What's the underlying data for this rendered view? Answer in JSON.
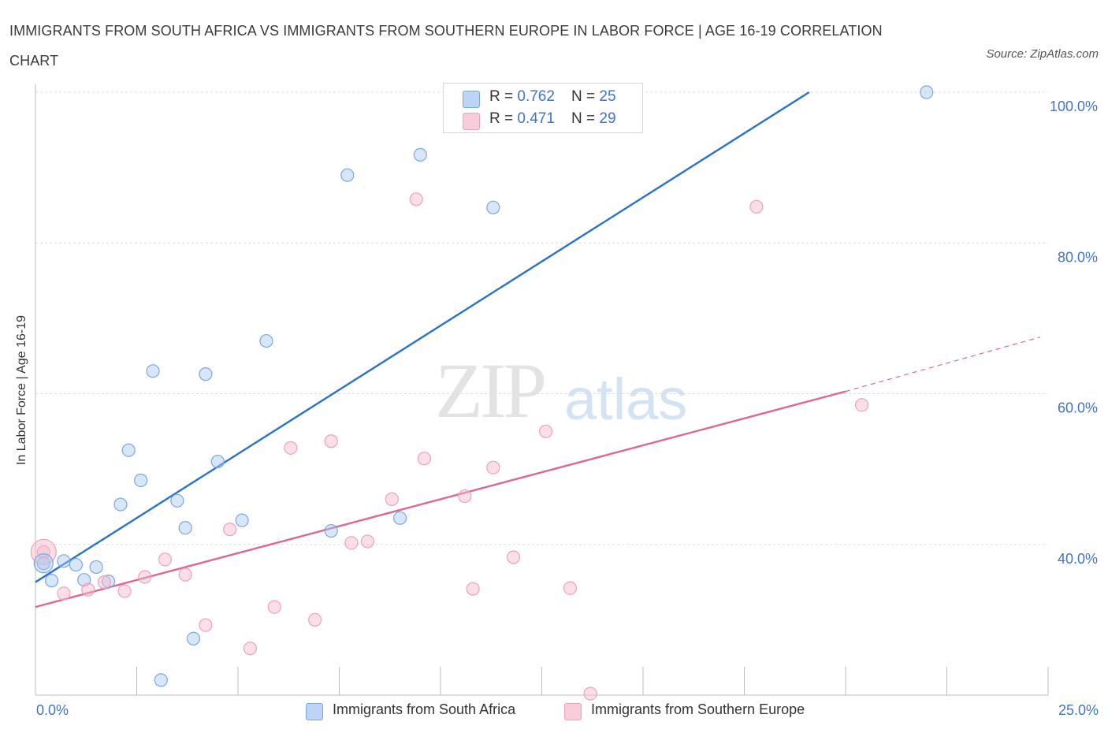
{
  "header": {
    "title": "IMMIGRANTS FROM SOUTH AFRICA VS IMMIGRANTS FROM SOUTHERN EUROPE IN LABOR FORCE | AGE 16-19 CORRELATION CHART",
    "source": "Source: ZipAtlas.com"
  },
  "watermark": {
    "zip": "ZIP",
    "atlas": "atlas"
  },
  "legend": {
    "rows": [
      {
        "r_label": "R = ",
        "r_value": "0.762",
        "n_label": "N = ",
        "n_value": "25",
        "color": "#a9c8f2"
      },
      {
        "r_label": "R = ",
        "r_value": "0.471",
        "n_label": "N = ",
        "n_value": "29",
        "color": "#f5b8cb"
      }
    ]
  },
  "bottom_legend": {
    "items": [
      {
        "label": "Immigrants from South Africa",
        "color": "#a9c8f2"
      },
      {
        "label": "Immigrants from Southern Europe",
        "color": "#f5b8cb"
      }
    ]
  },
  "chart_data": {
    "type": "scatter",
    "ylabel": "In Labor Force | Age 16-19",
    "xlim": [
      0,
      25
    ],
    "ylim": [
      20,
      100
    ],
    "x_tick_labels": [
      "0.0%",
      "25.0%"
    ],
    "y_ticks": [
      40,
      60,
      80,
      100
    ],
    "y_tick_labels": [
      "40.0%",
      "60.0%",
      "80.0%",
      "100.0%"
    ],
    "grid": "horizontal dashed",
    "series": [
      {
        "name": "Immigrants from South Africa",
        "color": "#7aa7e0",
        "line_color": "#2a72c8",
        "points": [
          [
            0.2,
            37.5
          ],
          [
            0.4,
            35.2
          ],
          [
            0.7,
            37.8
          ],
          [
            1.0,
            37.3
          ],
          [
            1.2,
            35.3
          ],
          [
            1.5,
            37.0
          ],
          [
            1.8,
            35.1
          ],
          [
            2.1,
            45.3
          ],
          [
            2.3,
            52.5
          ],
          [
            2.6,
            48.5
          ],
          [
            2.9,
            63.0
          ],
          [
            3.1,
            22.0
          ],
          [
            3.5,
            45.8
          ],
          [
            3.7,
            42.2
          ],
          [
            3.9,
            27.5
          ],
          [
            4.2,
            62.6
          ],
          [
            4.5,
            51.0
          ],
          [
            5.1,
            43.2
          ],
          [
            5.7,
            67.0
          ],
          [
            7.3,
            41.8
          ],
          [
            7.7,
            89.0
          ],
          [
            9.0,
            43.5
          ],
          [
            9.5,
            91.7
          ],
          [
            11.3,
            84.7
          ],
          [
            22.0,
            100.0
          ]
        ],
        "trend": {
          "x": [
            0,
            19.1
          ],
          "y": [
            35.0,
            100.0
          ]
        }
      },
      {
        "name": "Immigrants from Southern Europe",
        "color": "#f1a0b8",
        "line_color": "#e0668e",
        "points": [
          [
            0.2,
            39.0
          ],
          [
            0.7,
            33.5
          ],
          [
            1.3,
            34.0
          ],
          [
            1.7,
            35.0
          ],
          [
            2.2,
            33.8
          ],
          [
            2.7,
            35.7
          ],
          [
            3.2,
            38.0
          ],
          [
            3.7,
            36.0
          ],
          [
            4.2,
            29.3
          ],
          [
            4.8,
            42.0
          ],
          [
            5.3,
            26.2
          ],
          [
            5.9,
            31.7
          ],
          [
            6.3,
            52.8
          ],
          [
            6.9,
            30.0
          ],
          [
            7.3,
            53.7
          ],
          [
            7.8,
            40.2
          ],
          [
            8.2,
            40.4
          ],
          [
            8.8,
            46.0
          ],
          [
            9.4,
            85.8
          ],
          [
            9.6,
            51.4
          ],
          [
            10.6,
            46.4
          ],
          [
            10.8,
            34.1
          ],
          [
            11.3,
            50.2
          ],
          [
            11.8,
            38.3
          ],
          [
            12.6,
            55.0
          ],
          [
            13.2,
            34.2
          ],
          [
            13.7,
            20.2
          ],
          [
            17.8,
            84.8
          ],
          [
            20.4,
            58.5
          ]
        ],
        "trend": {
          "x": [
            0,
            20.0
          ],
          "y": [
            31.7,
            60.3
          ]
        },
        "trend_extension": {
          "x": [
            20.0,
            24.8
          ],
          "y": [
            60.3,
            67.5
          ]
        }
      }
    ]
  }
}
